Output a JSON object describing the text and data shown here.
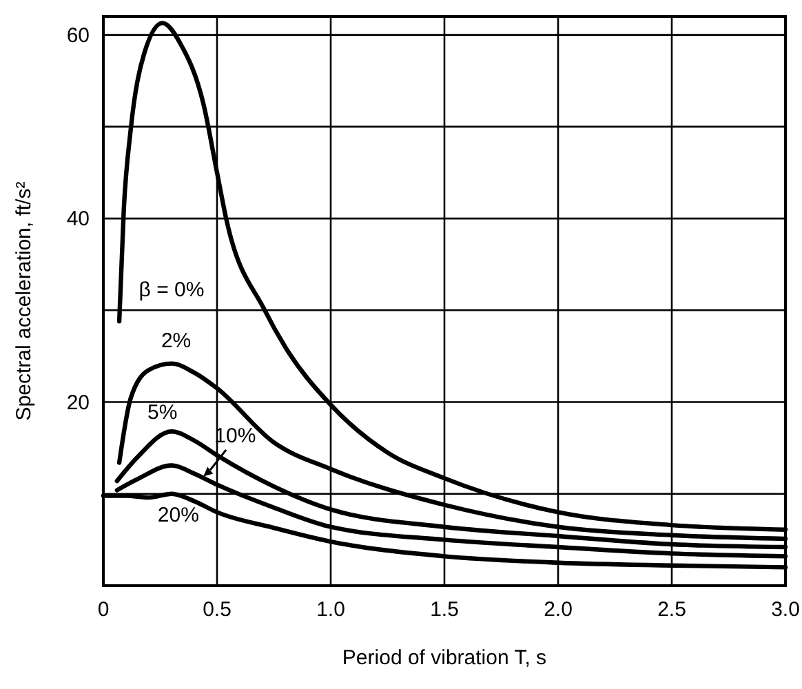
{
  "chart_data": {
    "type": "line",
    "xlabel": "Period of vibration T, s",
    "ylabel": "Spectral acceleration, ft/s²",
    "xlim": [
      0,
      3
    ],
    "ylim": [
      0,
      62
    ],
    "xticks": [
      0,
      0.5,
      {
        "value": 1,
        "label": "1.0"
      },
      1.5,
      {
        "value": 2,
        "label": "2.0"
      },
      2.5,
      {
        "value": 3,
        "label": "3.0"
      }
    ],
    "yticks": [
      {
        "value": 10,
        "label": null
      },
      20,
      {
        "value": 30,
        "label": null
      },
      40,
      {
        "value": 50,
        "label": null
      },
      60
    ],
    "grid": true,
    "line_style": "solid",
    "marker": "none",
    "series": [
      {
        "name": "β = 0%",
        "color": "#000000",
        "x": [
          0.07,
          0.09,
          0.12,
          0.18,
          0.26,
          0.34,
          0.44,
          0.5,
          0.54,
          0.71,
          0.8,
          1.0,
          1.25,
          1.5,
          2.0,
          2.5,
          3.0
        ],
        "values": [
          28.8,
          41,
          49.6,
          58,
          61.3,
          59,
          52.5,
          45,
          40,
          30,
          26,
          19.7,
          14.5,
          11.7,
          8,
          6.6,
          6.1
        ]
      },
      {
        "name": "2%",
        "color": "#000000",
        "x": [
          0.07,
          0.12,
          0.2,
          0.3,
          0.4,
          0.5,
          0.75,
          1.0,
          1.5,
          2.0,
          2.5,
          3.0
        ],
        "values": [
          13.4,
          20.4,
          23.5,
          24.2,
          23.2,
          21.5,
          15.6,
          12.7,
          8.8,
          6.4,
          5.5,
          5.1
        ]
      },
      {
        "name": "5%",
        "color": "#000000",
        "x": [
          0.06,
          0.15,
          0.3,
          0.4,
          0.5,
          0.75,
          1.0,
          1.5,
          2.0,
          2.5,
          3.0
        ],
        "values": [
          11.4,
          14,
          16.8,
          15.8,
          14.2,
          10.8,
          8.3,
          6.4,
          5.4,
          4.5,
          4.2
        ]
      },
      {
        "name": "10%",
        "color": "#000000",
        "x": [
          0.06,
          0.15,
          0.3,
          0.4,
          0.5,
          0.75,
          1.0,
          1.5,
          2.0,
          2.5,
          3.0
        ],
        "values": [
          10.4,
          11.6,
          13.1,
          12.2,
          11,
          8.5,
          6.4,
          5,
          4.2,
          3.5,
          3.2
        ]
      },
      {
        "name": "20%",
        "color": "#000000",
        "x": [
          0,
          0.1,
          0.2,
          0.3,
          0.4,
          0.5,
          0.75,
          1.0,
          1.5,
          2.0,
          2.5,
          3.0
        ],
        "values": [
          9.8,
          9.8,
          9.6,
          10,
          9.2,
          8,
          6.3,
          4.8,
          3.2,
          2.5,
          2.2,
          2
        ]
      }
    ]
  }
}
